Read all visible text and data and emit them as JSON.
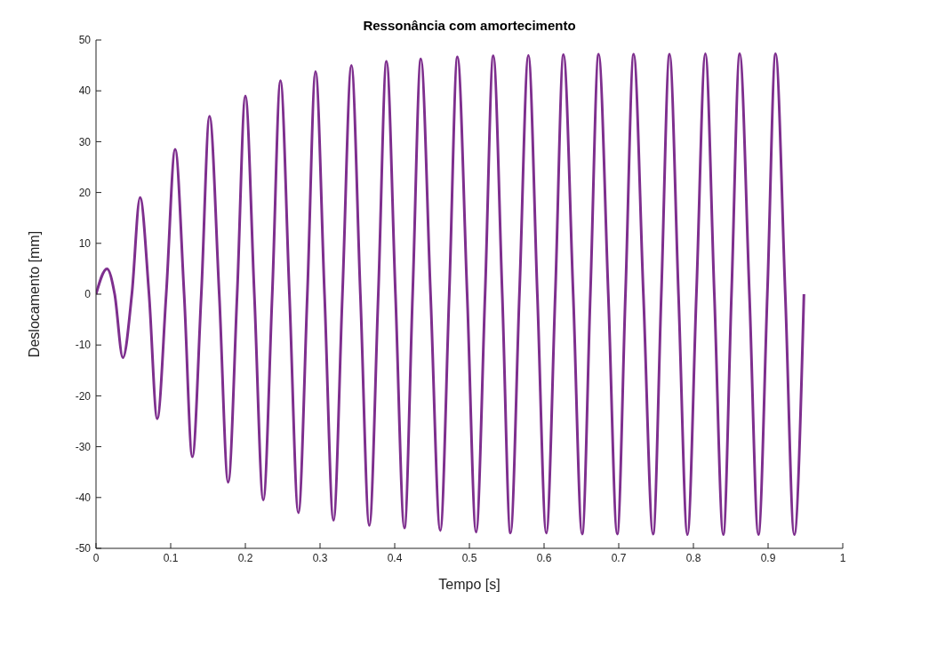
{
  "chart_data": {
    "type": "line",
    "title": "Ressonância com amortecimento",
    "xlabel": "Tempo [s]",
    "ylabel": "Deslocamento [mm]",
    "xlim": [
      0,
      1
    ],
    "xticks": [
      0,
      0.1,
      0.2,
      0.3,
      0.4,
      0.5,
      0.6,
      0.7,
      0.8,
      0.9,
      1
    ],
    "ylim": [
      -50,
      50
    ],
    "yticks": [
      -50,
      -40,
      -30,
      -20,
      -10,
      0,
      10,
      20,
      30,
      40,
      50
    ],
    "grid": false,
    "marker": "none",
    "line_style": "solid",
    "series": [
      {
        "color": "#7e2f8e",
        "x": [
          0,
          0.0147,
          0.025,
          0.036,
          0.048,
          0.059,
          0.071,
          0.082,
          0.094,
          0.106,
          0.118,
          0.129,
          0.141,
          0.152,
          0.165,
          0.177,
          0.189,
          0.2,
          0.212,
          0.224,
          0.236,
          0.247,
          0.259,
          0.271,
          0.283,
          0.294,
          0.306,
          0.318,
          0.33,
          0.342,
          0.354,
          0.366,
          0.378,
          0.389,
          0.401,
          0.413,
          0.424,
          0.435,
          0.448,
          0.461,
          0.473,
          0.484,
          0.497,
          0.509,
          0.521,
          0.532,
          0.544,
          0.555,
          0.567,
          0.579,
          0.591,
          0.603,
          0.615,
          0.626,
          0.639,
          0.651,
          0.662,
          0.673,
          0.686,
          0.698,
          0.709,
          0.72,
          0.733,
          0.746,
          0.757,
          0.768,
          0.78,
          0.792,
          0.804,
          0.816,
          0.828,
          0.84,
          0.851,
          0.862,
          0.875,
          0.887,
          0.899,
          0.91,
          0.923,
          0.935,
          0.948
        ],
        "values": [
          0,
          5,
          0,
          -12.5,
          0,
          19,
          0,
          -24.5,
          0,
          28.5,
          0,
          -32,
          0,
          35,
          0,
          -37,
          0,
          39,
          0,
          -40.5,
          0,
          42,
          0,
          -43,
          0,
          43.8,
          0,
          -44.5,
          0,
          45,
          0,
          -45.5,
          0,
          45.8,
          0,
          -46,
          0,
          46.3,
          0,
          -46.5,
          0,
          46.7,
          0,
          -46.8,
          0,
          46.9,
          0,
          -47,
          0,
          47,
          0,
          -47,
          0,
          47.1,
          0,
          -47.2,
          0,
          47.2,
          0,
          -47.2,
          0,
          47.2,
          0,
          -47.2,
          0,
          47.2,
          0,
          -47.3,
          0,
          47.3,
          0,
          -47.3,
          0,
          47.3,
          0,
          -47.3,
          0,
          47.3,
          0,
          -47.3,
          0
        ]
      }
    ]
  }
}
